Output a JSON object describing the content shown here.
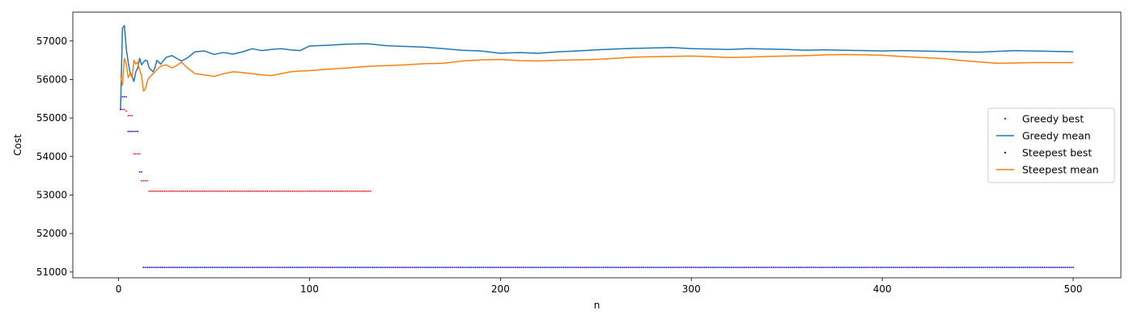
{
  "chart_data": {
    "type": "line",
    "title": "",
    "xlabel": "n",
    "ylabel": "Cost",
    "xlim": [
      -24,
      525
    ],
    "ylim": [
      50850,
      57750
    ],
    "x_ticks": [
      0,
      100,
      200,
      300,
      400,
      500
    ],
    "y_ticks": [
      51000,
      52000,
      53000,
      54000,
      55000,
      56000,
      57000
    ],
    "grid": false,
    "legend_position": "center-right",
    "series": [
      {
        "name": "Greedy best",
        "kind": "markers",
        "color": "#ff0000",
        "segments": [
          {
            "x_start": 1,
            "x_end": 3,
            "y": 55220
          },
          {
            "x_start": 4,
            "x_end": 4,
            "y": 55180
          },
          {
            "x_start": 5,
            "x_end": 7,
            "y": 55060
          },
          {
            "x_start": 8,
            "x_end": 11,
            "y": 54070
          },
          {
            "x_start": 12,
            "x_end": 15,
            "y": 53370
          },
          {
            "x_start": 16,
            "x_end": 132,
            "y": 53100
          }
        ]
      },
      {
        "name": "Greedy mean",
        "kind": "line",
        "color": "#1f77b4",
        "points": [
          [
            1,
            55220
          ],
          [
            2,
            57330
          ],
          [
            3,
            57400
          ],
          [
            4,
            56800
          ],
          [
            5,
            56450
          ],
          [
            6,
            56180
          ],
          [
            7,
            56080
          ],
          [
            8,
            55950
          ],
          [
            9,
            56200
          ],
          [
            10,
            56300
          ],
          [
            11,
            56550
          ],
          [
            12,
            56380
          ],
          [
            13,
            56450
          ],
          [
            14,
            56500
          ],
          [
            15,
            56480
          ],
          [
            16,
            56300
          ],
          [
            17,
            56250
          ],
          [
            18,
            56200
          ],
          [
            19,
            56300
          ],
          [
            20,
            56500
          ],
          [
            22,
            56400
          ],
          [
            25,
            56580
          ],
          [
            28,
            56620
          ],
          [
            30,
            56560
          ],
          [
            33,
            56480
          ],
          [
            36,
            56560
          ],
          [
            40,
            56720
          ],
          [
            45,
            56740
          ],
          [
            50,
            56650
          ],
          [
            55,
            56700
          ],
          [
            60,
            56660
          ],
          [
            65,
            56720
          ],
          [
            70,
            56800
          ],
          [
            75,
            56750
          ],
          [
            80,
            56780
          ],
          [
            85,
            56800
          ],
          [
            90,
            56770
          ],
          [
            95,
            56750
          ],
          [
            100,
            56870
          ],
          [
            110,
            56890
          ],
          [
            120,
            56920
          ],
          [
            130,
            56930
          ],
          [
            140,
            56880
          ],
          [
            150,
            56860
          ],
          [
            160,
            56840
          ],
          [
            170,
            56800
          ],
          [
            180,
            56760
          ],
          [
            190,
            56740
          ],
          [
            200,
            56680
          ],
          [
            210,
            56700
          ],
          [
            220,
            56680
          ],
          [
            230,
            56720
          ],
          [
            240,
            56740
          ],
          [
            250,
            56770
          ],
          [
            260,
            56790
          ],
          [
            270,
            56810
          ],
          [
            280,
            56820
          ],
          [
            290,
            56830
          ],
          [
            300,
            56800
          ],
          [
            310,
            56790
          ],
          [
            320,
            56780
          ],
          [
            330,
            56800
          ],
          [
            340,
            56790
          ],
          [
            350,
            56780
          ],
          [
            360,
            56760
          ],
          [
            370,
            56770
          ],
          [
            380,
            56760
          ],
          [
            390,
            56750
          ],
          [
            400,
            56740
          ],
          [
            410,
            56750
          ],
          [
            420,
            56740
          ],
          [
            430,
            56730
          ],
          [
            440,
            56720
          ],
          [
            450,
            56710
          ],
          [
            460,
            56730
          ],
          [
            470,
            56750
          ],
          [
            480,
            56740
          ],
          [
            490,
            56730
          ],
          [
            500,
            56720
          ]
        ]
      },
      {
        "name": "Steepest best",
        "kind": "markers",
        "color": "#0000ff",
        "segments": [
          {
            "x_start": 1,
            "x_end": 1,
            "y": 55220
          },
          {
            "x_start": 2,
            "x_end": 4,
            "y": 55550
          },
          {
            "x_start": 5,
            "x_end": 10,
            "y": 54650
          },
          {
            "x_start": 11,
            "x_end": 12,
            "y": 53600
          },
          {
            "x_start": 13,
            "x_end": 500,
            "y": 51120
          }
        ]
      },
      {
        "name": "Steepest mean",
        "kind": "line",
        "color": "#ff7f0e",
        "points": [
          [
            1,
            56100
          ],
          [
            2,
            55850
          ],
          [
            3,
            56550
          ],
          [
            4,
            56400
          ],
          [
            5,
            56050
          ],
          [
            6,
            56150
          ],
          [
            7,
            56050
          ],
          [
            8,
            56500
          ],
          [
            9,
            56400
          ],
          [
            10,
            56450
          ],
          [
            11,
            56250
          ],
          [
            12,
            56100
          ],
          [
            13,
            55700
          ],
          [
            14,
            55750
          ],
          [
            15,
            55950
          ],
          [
            16,
            56050
          ],
          [
            17,
            56100
          ],
          [
            18,
            56150
          ],
          [
            20,
            56250
          ],
          [
            22,
            56350
          ],
          [
            25,
            56380
          ],
          [
            28,
            56300
          ],
          [
            30,
            56350
          ],
          [
            33,
            56450
          ],
          [
            36,
            56300
          ],
          [
            40,
            56150
          ],
          [
            45,
            56120
          ],
          [
            50,
            56080
          ],
          [
            55,
            56150
          ],
          [
            60,
            56200
          ],
          [
            65,
            56180
          ],
          [
            70,
            56150
          ],
          [
            75,
            56120
          ],
          [
            80,
            56100
          ],
          [
            85,
            56150
          ],
          [
            90,
            56200
          ],
          [
            95,
            56220
          ],
          [
            100,
            56230
          ],
          [
            110,
            56270
          ],
          [
            120,
            56300
          ],
          [
            130,
            56340
          ],
          [
            140,
            56360
          ],
          [
            150,
            56380
          ],
          [
            160,
            56410
          ],
          [
            170,
            56420
          ],
          [
            180,
            56480
          ],
          [
            190,
            56510
          ],
          [
            200,
            56520
          ],
          [
            210,
            56490
          ],
          [
            220,
            56480
          ],
          [
            230,
            56500
          ],
          [
            240,
            56510
          ],
          [
            250,
            56520
          ],
          [
            260,
            56550
          ],
          [
            270,
            56580
          ],
          [
            280,
            56590
          ],
          [
            290,
            56600
          ],
          [
            300,
            56610
          ],
          [
            310,
            56590
          ],
          [
            320,
            56570
          ],
          [
            330,
            56580
          ],
          [
            340,
            56600
          ],
          [
            350,
            56610
          ],
          [
            360,
            56620
          ],
          [
            370,
            56640
          ],
          [
            380,
            56650
          ],
          [
            390,
            56640
          ],
          [
            400,
            56630
          ],
          [
            410,
            56600
          ],
          [
            420,
            56570
          ],
          [
            430,
            56550
          ],
          [
            440,
            56500
          ],
          [
            450,
            56460
          ],
          [
            460,
            56420
          ],
          [
            470,
            56430
          ],
          [
            480,
            56440
          ],
          [
            490,
            56440
          ],
          [
            500,
            56440
          ]
        ]
      }
    ]
  }
}
